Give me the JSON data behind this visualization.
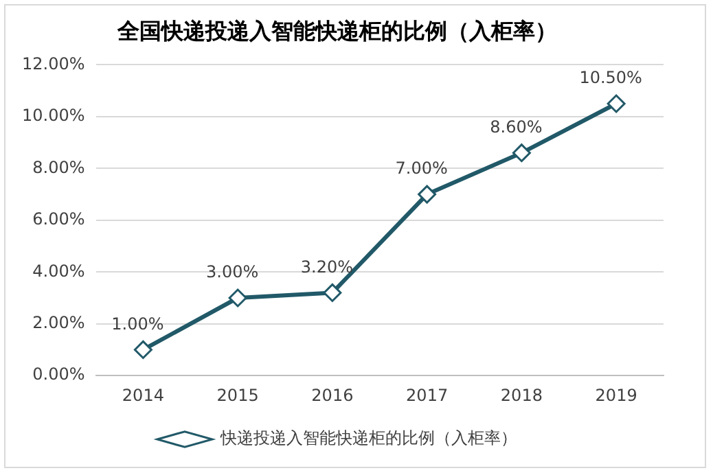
{
  "chart_data": {
    "type": "line",
    "title": "全国快递投递入智能快递柜的比例（入柜率）",
    "categories": [
      "2014",
      "2015",
      "2016",
      "2017",
      "2018",
      "2019"
    ],
    "series": [
      {
        "name": "快递投递入智能快递柜的比例（入柜率）",
        "color": "#215968",
        "values": [
          1,
          3,
          3.2,
          7,
          8.6,
          10.5
        ],
        "value_labels": [
          "1.00%",
          "3.00%",
          "3.20%",
          "7.00%",
          "8.60%",
          "10.50%"
        ]
      }
    ],
    "ylim": [
      0,
      12
    ],
    "yticks": [
      {
        "value": 0,
        "label": "0.00%"
      },
      {
        "value": 2,
        "label": "2.00%"
      },
      {
        "value": 4,
        "label": "4.00%"
      },
      {
        "value": 6,
        "label": "6.00%"
      },
      {
        "value": 8,
        "label": "8.00%"
      },
      {
        "value": 10,
        "label": "10.00%"
      },
      {
        "value": 12,
        "label": "12.00%"
      }
    ],
    "grid": "y",
    "legend": "bottom",
    "marker": "diamond",
    "line_style": "solid"
  }
}
